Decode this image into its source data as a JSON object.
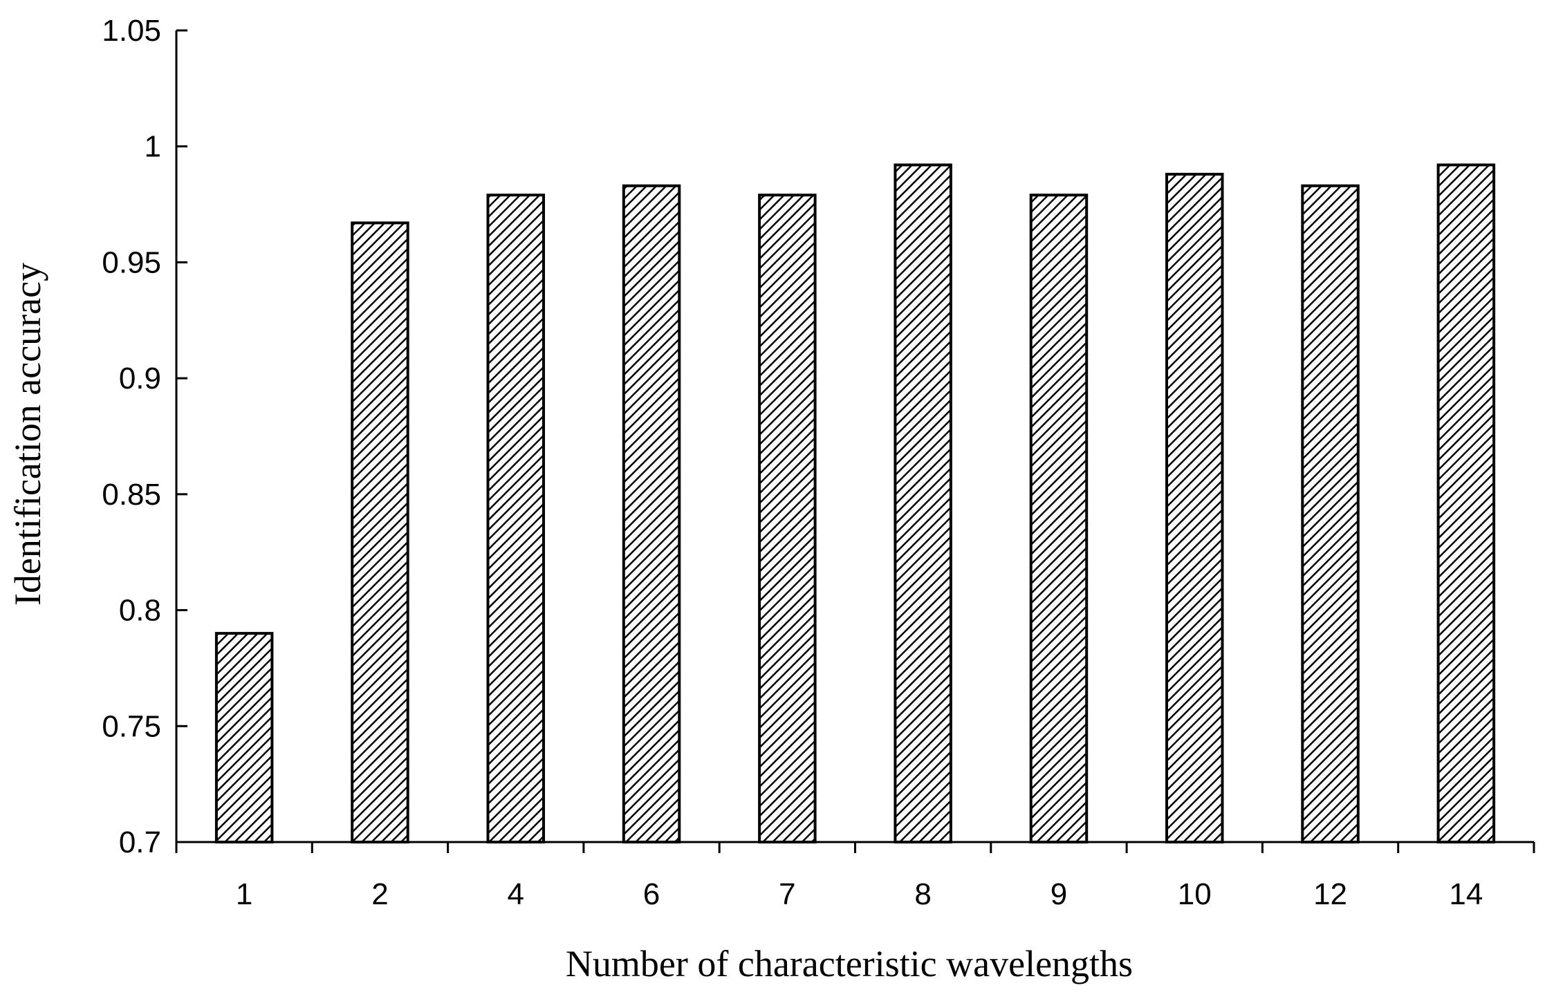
{
  "chart_data": {
    "type": "bar",
    "xlabel": "Number of characteristic wavelengths",
    "ylabel": "Identification accuracy",
    "categories": [
      "1",
      "2",
      "4",
      "6",
      "7",
      "8",
      "9",
      "10",
      "12",
      "14"
    ],
    "values": [
      0.79,
      0.967,
      0.979,
      0.983,
      0.979,
      0.992,
      0.979,
      0.988,
      0.983,
      0.992
    ],
    "ylim": [
      0.7,
      1.05
    ],
    "yticks": [
      "0.7",
      "0.75",
      "0.8",
      "0.85",
      "0.9",
      "0.95",
      "1",
      "1.05"
    ],
    "grid": false,
    "legend": "none",
    "bar_fill": "diagonal-hatch",
    "colors": {
      "bar_stroke": "#000000",
      "hatch": "#000000",
      "background": "#ffffff"
    }
  }
}
